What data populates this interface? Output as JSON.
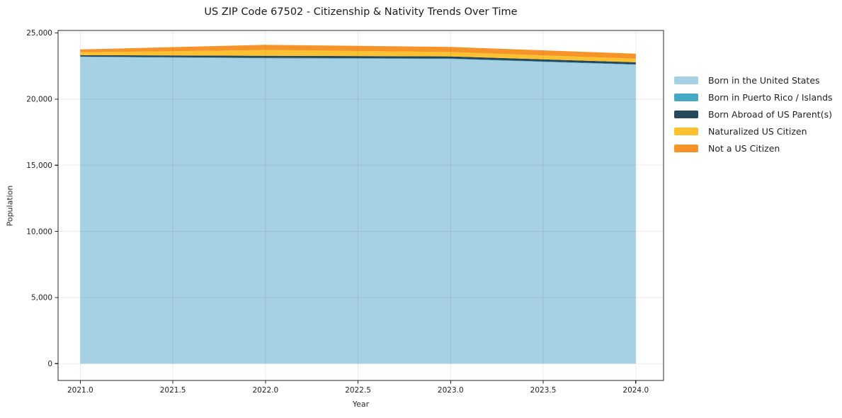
{
  "chart_data": {
    "type": "area",
    "stacked": true,
    "title": "US ZIP Code 67502 - Citizenship & Nativity Trends Over Time",
    "xlabel": "Year",
    "ylabel": "Population",
    "x": [
      2021,
      2022,
      2023,
      2024
    ],
    "series": [
      {
        "name": "Born in the United States",
        "color": "#a6d0e4",
        "values": [
          23190,
          23080,
          23030,
          22600
        ]
      },
      {
        "name": "Born in Puerto Rico / Islands",
        "color": "#45a8c5",
        "values": [
          25,
          40,
          40,
          25
        ]
      },
      {
        "name": "Born Abroad of US Parent(s)",
        "color": "#27475c",
        "values": [
          110,
          160,
          160,
          160
        ]
      },
      {
        "name": "Naturalized US Citizen",
        "color": "#fcc131",
        "values": [
          215,
          430,
          330,
          270
        ]
      },
      {
        "name": "Not a US Citizen",
        "color": "#f79429",
        "values": [
          215,
          390,
          390,
          380
        ]
      }
    ],
    "xlim": [
      2020.88,
      2024.15
    ],
    "ylim": [
      -1270,
      25190
    ],
    "xticks": [
      {
        "value": 2021.0,
        "label": "2021.0"
      },
      {
        "value": 2021.5,
        "label": "2021.5"
      },
      {
        "value": 2022.0,
        "label": "2022.0"
      },
      {
        "value": 2022.5,
        "label": "2022.5"
      },
      {
        "value": 2023.0,
        "label": "2023.0"
      },
      {
        "value": 2023.5,
        "label": "2023.5"
      },
      {
        "value": 2024.0,
        "label": "2024.0"
      }
    ],
    "yticks": [
      {
        "value": 0,
        "label": "0"
      },
      {
        "value": 5000,
        "label": "5,000"
      },
      {
        "value": 10000,
        "label": "10,000"
      },
      {
        "value": 15000,
        "label": "15,000"
      },
      {
        "value": 20000,
        "label": "20,000"
      },
      {
        "value": 25000,
        "label": "25,000"
      }
    ],
    "grid": true,
    "legend_position": "right"
  },
  "style_colors": {
    "spine": "#262626",
    "tick_text": "#1f1f1f",
    "grid": "rgba(0,0,0,0.07)",
    "background": "#ffffff"
  }
}
